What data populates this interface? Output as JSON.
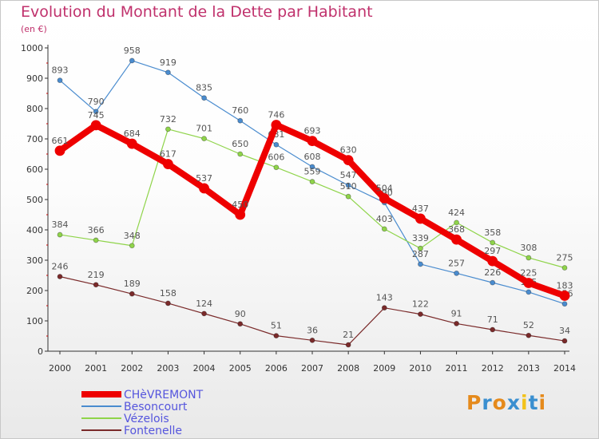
{
  "title": "Evolution du Montant de la Dette par Habitant",
  "subtitle": "(en €)",
  "logo": {
    "text": "Proxiti",
    "letter_colors": [
      "#e58a1c",
      "#3a8fd0",
      "#e58a1c",
      "#3a8fd0",
      "#f3c21a",
      "#3a8fd0",
      "#e58a1c"
    ]
  },
  "chart_data": {
    "type": "line",
    "title": "Evolution du Montant de la Dette par Habitant",
    "ylabel": "(en €)",
    "xlabel": "",
    "x": [
      "2000",
      "2001",
      "2002",
      "2003",
      "2004",
      "2005",
      "2006",
      "2007",
      "2008",
      "2009",
      "2010",
      "2011",
      "2012",
      "2013",
      "2014"
    ],
    "ylim": [
      0,
      1000
    ],
    "yticks": [
      0,
      100,
      200,
      300,
      400,
      500,
      600,
      700,
      800,
      900,
      1000
    ],
    "grid": false,
    "legend": "bottom-left",
    "series": [
      {
        "name": "Besoncourt",
        "color": "#4a8ccf",
        "width": 1.2,
        "values": [
          893,
          790,
          958,
          919,
          835,
          760,
          681,
          608,
          547,
          490,
          287,
          257,
          226,
          195,
          156
        ],
        "labels": [
          "893",
          "790",
          "958",
          "919",
          "835",
          "760",
          "681",
          "608",
          "547",
          "490",
          "287",
          "257",
          "226",
          "195",
          "156"
        ]
      },
      {
        "name": "Vézelois",
        "color": "#8fd44a",
        "width": 1.2,
        "values": [
          384,
          366,
          348,
          732,
          701,
          650,
          606,
          559,
          510,
          403,
          339,
          424,
          358,
          308,
          275
        ],
        "labels": [
          "384",
          "366",
          "348",
          "732",
          "701",
          "650",
          "606",
          "559",
          "510",
          "403",
          "339",
          "424",
          "358",
          "308",
          "275"
        ]
      },
      {
        "name": "Fontenelle",
        "color": "#7a2a2a",
        "width": 1.2,
        "values": [
          246,
          219,
          189,
          158,
          124,
          90,
          51,
          36,
          21,
          143,
          122,
          91,
          71,
          52,
          34
        ],
        "labels": [
          "246",
          "219",
          "189",
          "158",
          "124",
          "90",
          "51",
          "36",
          "21",
          "143",
          "122",
          "91",
          "71",
          "52",
          "34"
        ]
      },
      {
        "name": "CHèVREMONT",
        "color": "#ee0000",
        "width": 8,
        "values": [
          661,
          745,
          684,
          617,
          537,
          450,
          746,
          693,
          630,
          504,
          437,
          368,
          297,
          225,
          183
        ],
        "labels": [
          "661",
          "745",
          "684",
          "617",
          "537",
          "450",
          "746",
          "693",
          "630",
          "504",
          "437",
          "368",
          "297",
          "225",
          "183"
        ]
      }
    ],
    "legend_items": [
      {
        "name": "CHèVREMONT",
        "color": "#ee0000",
        "width": 8
      },
      {
        "name": "Besoncourt",
        "color": "#4a8ccf",
        "width": 2
      },
      {
        "name": "Vézelois",
        "color": "#8fd44a",
        "width": 2
      },
      {
        "name": "Fontenelle",
        "color": "#7a2a2a",
        "width": 2
      }
    ],
    "label_color": "#555555",
    "legend_text_color": "#5555dd",
    "axis_color": "#333333",
    "tick_mark_color": "#cc0000"
  }
}
